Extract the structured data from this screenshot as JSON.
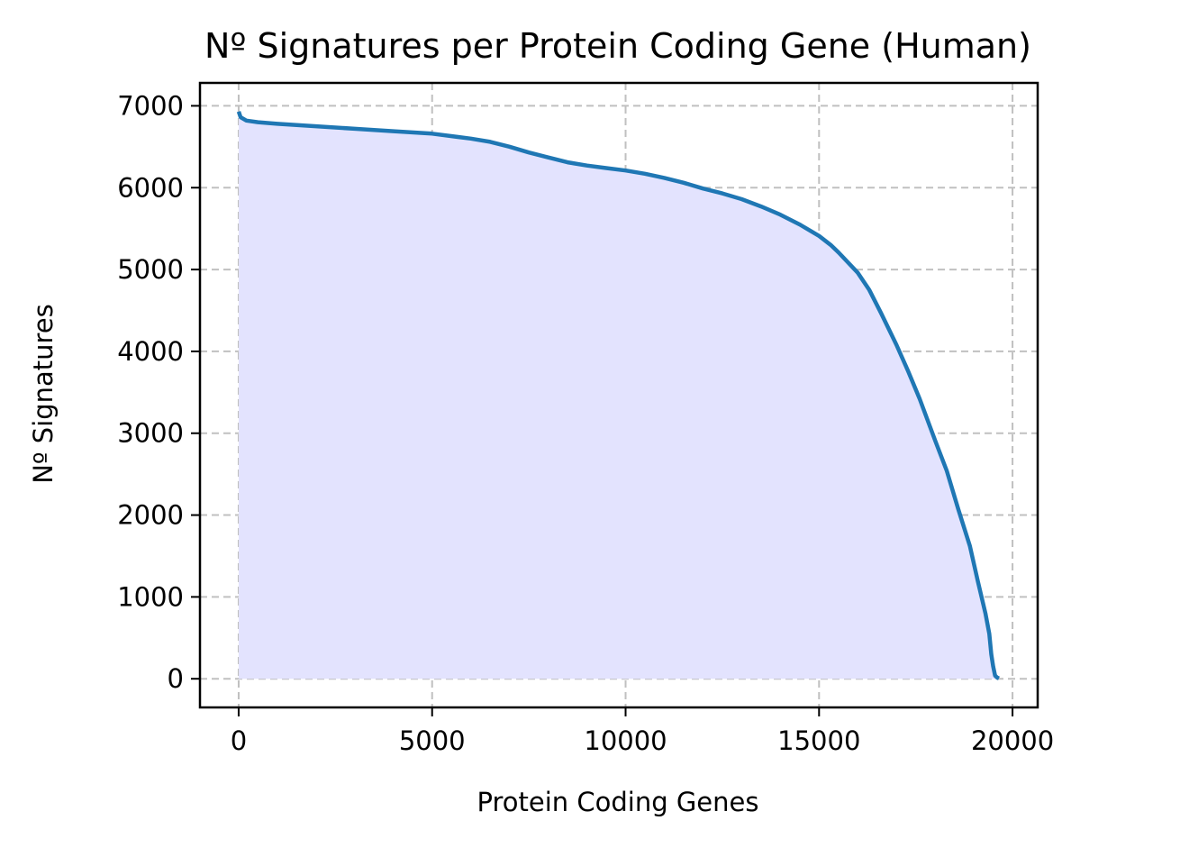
{
  "chart_data": {
    "type": "area",
    "title": "Nº Signatures per Protein Coding Gene (Human)",
    "xlabel": "Protein Coding Genes",
    "ylabel": "Nº Signatures",
    "xlim": [
      -1000,
      20650
    ],
    "ylim": [
      -350,
      7280
    ],
    "xticks": [
      0,
      5000,
      10000,
      15000,
      20000
    ],
    "yticks": [
      0,
      1000,
      2000,
      3000,
      4000,
      5000,
      6000,
      7000
    ],
    "grid": true,
    "grid_style": "dashed",
    "colors": {
      "line": "#1f77b4",
      "fill": "#e3e3fe",
      "grid": "#c0c0c0"
    },
    "series": [
      {
        "x": [
          0,
          50,
          200,
          500,
          1000,
          2000,
          3000,
          4000,
          5000,
          6000,
          6500,
          7000,
          7500,
          8000,
          8500,
          9000,
          9500,
          10000,
          10500,
          11000,
          11500,
          12000,
          12500,
          13000,
          13500,
          14000,
          14500,
          15000,
          15300,
          15500,
          16000,
          16300,
          16600,
          17000,
          17300,
          17600,
          18000,
          18300,
          18600,
          18900,
          19100,
          19300,
          19400,
          19450,
          19500,
          19550,
          19600,
          19650
        ],
        "y": [
          6930,
          6860,
          6820,
          6800,
          6780,
          6750,
          6720,
          6690,
          6660,
          6600,
          6560,
          6500,
          6430,
          6370,
          6310,
          6270,
          6240,
          6210,
          6170,
          6120,
          6060,
          5990,
          5930,
          5860,
          5770,
          5670,
          5550,
          5410,
          5300,
          5210,
          4960,
          4750,
          4470,
          4080,
          3760,
          3420,
          2910,
          2540,
          2070,
          1620,
          1200,
          800,
          550,
          300,
          150,
          40,
          15,
          5
        ]
      }
    ]
  }
}
